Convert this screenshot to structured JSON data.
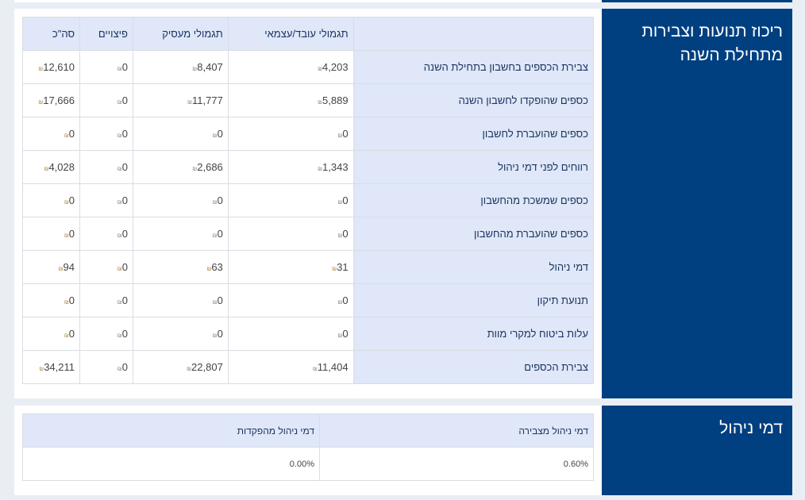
{
  "summary": {
    "title": "ריכוז תנועות וצבירות מתחילת השנה",
    "headers": [
      "",
      "תגמולי עובד/עצמאי",
      "תגמולי מעסיק",
      "פיצויים",
      "סה\"כ"
    ],
    "currency_icon": "shekel-icon",
    "rows": [
      {
        "label": "צבירת הכספים בחשבון בתחילת השנה",
        "values": [
          "4,203",
          "8,407",
          "0",
          "12,610"
        ]
      },
      {
        "label": "כספים שהופקדו לחשבון השנה",
        "values": [
          "5,889",
          "11,777",
          "0",
          "17,666"
        ]
      },
      {
        "label": "כספים שהועברת לחשבון",
        "values": [
          "0",
          "0",
          "0",
          "0"
        ]
      },
      {
        "label": "רווחים לפני דמי ניהול",
        "values": [
          "1,343",
          "2,686",
          "0",
          "4,028"
        ]
      },
      {
        "label": "כספים שמשכת מהחשבון",
        "values": [
          "0",
          "0",
          "0",
          "0"
        ]
      },
      {
        "label": "כספים שהועברת מהחשבון",
        "values": [
          "0",
          "0",
          "0",
          "0"
        ]
      },
      {
        "label": "דמי ניהול",
        "values": [
          "31",
          "63",
          "0",
          "94"
        ]
      },
      {
        "label": "תנועת תיקון",
        "values": [
          "0",
          "0",
          "0",
          "0"
        ]
      },
      {
        "label": "עלות ביטוח למקרי מוות",
        "values": [
          "0",
          "0",
          "0",
          "0"
        ]
      },
      {
        "label": "צבירת הכספים",
        "values": [
          "11,404",
          "22,807",
          "0",
          "34,211"
        ]
      }
    ]
  },
  "fees": {
    "title": "דמי ניהול",
    "headers": [
      "דמי ניהול מצבירה",
      "דמי ניהול מהפקדות"
    ],
    "values": [
      "0.60%",
      "0.00%"
    ]
  },
  "colors": {
    "brand": "#003f80",
    "header_bg": "#dfe7f8",
    "page_bg": "#e9eef5"
  }
}
